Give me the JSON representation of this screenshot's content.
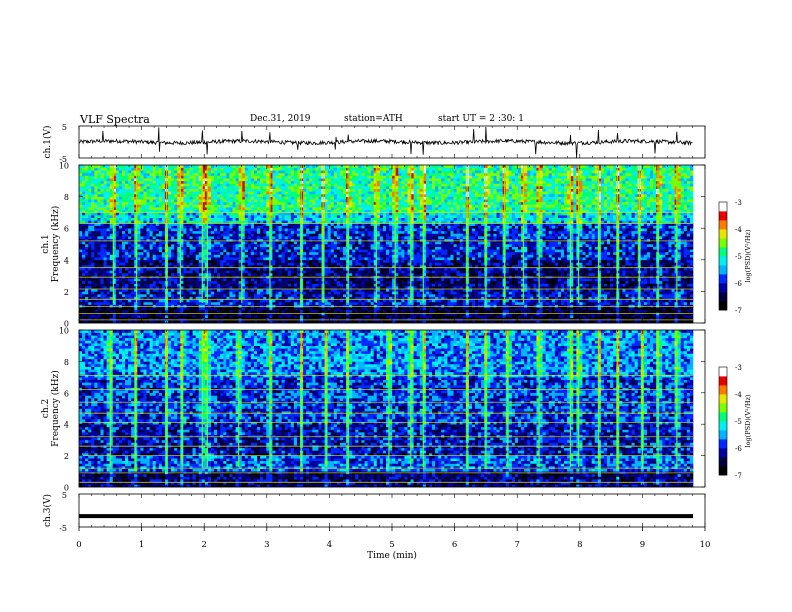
{
  "header": {
    "title": "VLF  Spectra",
    "date": "Dec.31,  2019",
    "station": "station=ATH",
    "start": "start  UT  =    2  :30: 1"
  },
  "colors": {
    "colormap": [
      "#000000",
      "#00003c",
      "#0000a0",
      "#0028ff",
      "#00b4ff",
      "#00f0f0",
      "#00ff78",
      "#78ff00",
      "#e6e600",
      "#ff7800",
      "#e60000",
      "#ffffff"
    ],
    "trace": "#000000"
  },
  "chart_data": [
    {
      "type": "line",
      "id": "ch1-waveform",
      "ylabel": "ch.1(V)",
      "ylim": [
        -5,
        5
      ],
      "y_ticks": [
        "5",
        "-5"
      ],
      "xlim": [
        0,
        10
      ],
      "baseline": 0.0,
      "noise_amplitude": 0.6,
      "spikes_min": [
        0.38,
        1.28,
        1.97,
        2.05,
        2.6,
        3.05,
        3.5,
        4.1,
        4.3,
        5.3,
        5.5,
        6.3,
        6.5,
        7.3,
        7.85,
        7.95,
        8.3,
        8.6,
        9.2,
        9.55
      ]
    },
    {
      "type": "heatmap",
      "id": "ch1-spectrogram",
      "ylabel": "ch.1\nFrequency  (kHz)",
      "xlim": [
        0,
        9.8
      ],
      "ylim": [
        0,
        10
      ],
      "y_ticks": [
        "0",
        "2",
        "4",
        "6",
        "8",
        "10"
      ],
      "colorbar": {
        "label": "log(PSD)(V²/Hz)",
        "range": [
          -7,
          -3
        ],
        "ticks": [
          "-3",
          "-4",
          "-5",
          "-6",
          "-7"
        ]
      },
      "bands": [
        {
          "from": 0.0,
          "to": 1.0,
          "level": -6.6
        },
        {
          "from": 1.0,
          "to": 2.2,
          "level": -6.1
        },
        {
          "from": 2.2,
          "to": 4.0,
          "level": -6.3
        },
        {
          "from": 4.0,
          "to": 6.3,
          "level": -6.0
        },
        {
          "from": 6.3,
          "to": 7.0,
          "level": -5.3
        },
        {
          "from": 7.0,
          "to": 10.0,
          "level": -4.9
        }
      ],
      "lines_khz": [
        0.2,
        0.6,
        1.05,
        1.5,
        2.15,
        2.9,
        3.5,
        5.2,
        6.3,
        7.0
      ],
      "bursts_min": [
        0.55,
        0.92,
        1.4,
        1.62,
        1.97,
        2.05,
        2.6,
        3.05,
        3.55,
        3.9,
        4.3,
        4.75,
        5.05,
        5.3,
        5.5,
        6.2,
        6.5,
        6.8,
        7.1,
        7.35,
        7.85,
        7.98,
        8.3,
        8.6,
        8.95,
        9.25,
        9.55
      ]
    },
    {
      "type": "heatmap",
      "id": "ch2-spectrogram",
      "ylabel": "ch.2\nFrequency  (kHz)",
      "xlim": [
        0,
        9.8
      ],
      "ylim": [
        0,
        10
      ],
      "y_ticks": [
        "0",
        "2",
        "4",
        "6",
        "8",
        "10"
      ],
      "colorbar": {
        "label": "log(PSD)(V²/Hz)",
        "range": [
          -7,
          -3
        ],
        "ticks": [
          "-3",
          "-4",
          "-5",
          "-6",
          "-7"
        ]
      },
      "bands": [
        {
          "from": 0.0,
          "to": 1.0,
          "level": -6.4
        },
        {
          "from": 1.0,
          "to": 2.0,
          "level": -5.8
        },
        {
          "from": 2.0,
          "to": 4.0,
          "level": -6.1
        },
        {
          "from": 4.0,
          "to": 7.0,
          "level": -5.9
        },
        {
          "from": 7.0,
          "to": 10.0,
          "level": -5.6
        }
      ],
      "lines_khz": [
        0.3,
        0.9,
        1.2,
        2.0,
        2.6,
        3.2,
        4.1,
        4.7,
        5.4,
        6.2,
        7.1
      ],
      "bursts_min": [
        0.5,
        0.9,
        1.4,
        1.65,
        1.97,
        2.05,
        2.55,
        3.05,
        3.55,
        3.95,
        4.3,
        4.95,
        5.3,
        5.5,
        6.2,
        6.5,
        6.85,
        7.35,
        7.85,
        7.98,
        8.3,
        8.6,
        9.0,
        9.25,
        9.55
      ]
    },
    {
      "type": "line",
      "id": "ch3-waveform",
      "ylabel": "ch.3(V)",
      "ylim": [
        -5,
        5
      ],
      "y_ticks": [
        "5",
        "-5"
      ],
      "xlim": [
        0,
        10
      ],
      "baseline": -1.7,
      "noise_amplitude": 0.15
    }
  ],
  "x_axis": {
    "xlabel": "Time  (min)",
    "range": [
      0,
      10
    ],
    "ticks": [
      "0",
      "1",
      "2",
      "3",
      "4",
      "5",
      "6",
      "7",
      "8",
      "9",
      "10"
    ]
  }
}
